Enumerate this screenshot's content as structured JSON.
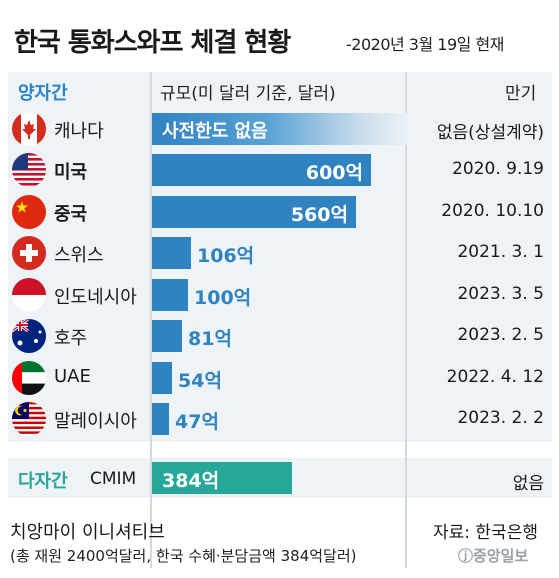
{
  "header": {
    "title": "한국 통화스와프 체결 현황",
    "subtitle": "-2020년 3월 19일 현재"
  },
  "columns": {
    "group_bilateral": "양자간",
    "scale": "규모(미 달러 기준, 달러)",
    "maturity": "만기"
  },
  "no_limit_row": {
    "country": "캐나다",
    "flag_icon": "canada-flag-icon",
    "scale_text": "사전한도 없음",
    "maturity": "없음(상설계약)"
  },
  "chart_data": {
    "type": "bar",
    "orientation": "horizontal",
    "title": "한국 통화스와프 체결 현황",
    "subtitle": "-2020년 3월 19일 현재",
    "unit": "억",
    "categories": [
      "미국",
      "중국",
      "스위스",
      "인도네시아",
      "호주",
      "UAE",
      "말레이시아"
    ],
    "values": [
      600,
      560,
      106,
      100,
      81,
      54,
      47
    ],
    "value_labels": [
      "600억",
      "560억",
      "106억",
      "100억",
      "81억",
      "54억",
      "47억"
    ],
    "maturities": [
      "2020. 9.19",
      "2020. 10.10",
      "2021. 3. 1",
      "2023. 3. 5",
      "2023. 2. 5",
      "2022. 4. 12",
      "2023. 2. 2"
    ],
    "flags": [
      "usa-flag-icon",
      "china-flag-icon",
      "switzerland-flag-icon",
      "indonesia-flag-icon",
      "australia-flag-icon",
      "uae-flag-icon",
      "malaysia-flag-icon"
    ],
    "xlim": [
      0,
      700
    ],
    "colors": {
      "bilateral": "#2f83c1",
      "multilateral": "#26a79a"
    }
  },
  "multilateral": {
    "label": "다자간",
    "name": "CMIM",
    "value": 384,
    "value_label": "384억",
    "maturity": "없음"
  },
  "footer": {
    "note_title": "치앙마이 이니셔티브",
    "note_detail": "(총 재원 2400억달러, 한국 수혜·분담금액 384억달러)",
    "source": "자료: 한국은행",
    "logo": "ⓙ중앙일보"
  }
}
